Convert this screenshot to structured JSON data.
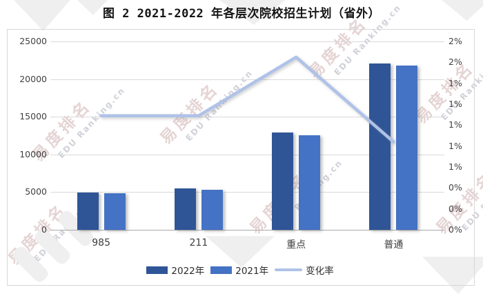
{
  "title": "图 2 2021-2022 年各层次院校招生计划（省外）",
  "watermark": {
    "cn": "易度排名",
    "en": "EDU Ranking.cn"
  },
  "chart_data": {
    "type": "bar",
    "subtype": "grouped-bars-with-line-overlay",
    "title": "图 2 2021-2022 年各层次院校招生计划（省外）",
    "categories": [
      "985",
      "211",
      "重点",
      "普通"
    ],
    "series": [
      {
        "name": "2022年",
        "type": "bar",
        "axis": "left",
        "color": "#2F5597",
        "values": [
          4950,
          5450,
          12900,
          22100
        ]
      },
      {
        "name": "2021年",
        "type": "bar",
        "axis": "left",
        "color": "#4472C4",
        "values": [
          4880,
          5300,
          12550,
          21800
        ]
      },
      {
        "name": "变化率",
        "type": "line",
        "axis": "right",
        "color": "#AFC2E8",
        "values_pct": [
          1.09,
          1.09,
          1.65,
          0.84
        ]
      }
    ],
    "left_axis": {
      "min": 0,
      "max": 25000,
      "step": 5000,
      "tick_labels_top_to_bottom": [
        "25000",
        "20000",
        "15000",
        "10000",
        "5000",
        "0"
      ]
    },
    "right_axis": {
      "min": 0,
      "max": 1.8,
      "step": 0.2,
      "tick_labels_top_to_bottom": [
        "2%",
        "2%",
        "1%",
        "1%",
        "1%",
        "1%",
        "1%",
        "0%",
        "0%",
        "0%"
      ]
    },
    "legend": [
      "2022年",
      "2021年",
      "变化率"
    ],
    "legend_position": "bottom",
    "grid": true
  }
}
